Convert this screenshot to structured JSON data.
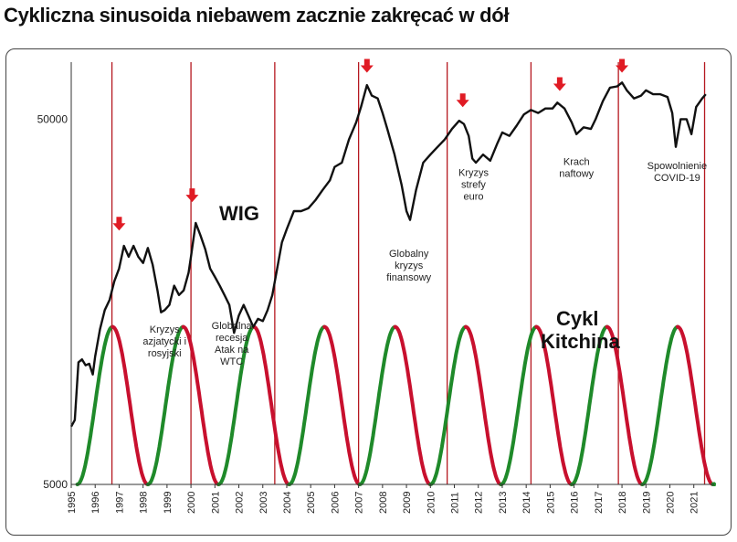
{
  "chart_data": {
    "type": "line",
    "title": "Cykliczna sinusoida niebawem zacznie zakręcać w dół",
    "wig_label": "WIG",
    "cycle_label": [
      "Cykl",
      "Kitchina"
    ],
    "y_scale": "log",
    "ylim": [
      5000,
      70000
    ],
    "yticks": [
      {
        "value": 5000,
        "label": "5000"
      },
      {
        "value": 50000,
        "label": "50000"
      }
    ],
    "xlim": [
      1995.0,
      2021.85
    ],
    "xticks": [
      "1995",
      "1996",
      "1997",
      "1998",
      "1999",
      "2000",
      "2001",
      "2002",
      "2003",
      "2004",
      "2005",
      "2006",
      "2007",
      "2008",
      "2009",
      "2010",
      "2011",
      "2012",
      "2013",
      "2014",
      "2015",
      "2016",
      "2017",
      "2018",
      "2019",
      "2020",
      "2021"
    ],
    "series": [
      {
        "points": [
          [
            1995.0,
            7200
          ],
          [
            1995.15,
            7500
          ],
          [
            1995.3,
            10800
          ],
          [
            1995.45,
            11000
          ],
          [
            1995.6,
            10600
          ],
          [
            1995.75,
            10700
          ],
          [
            1995.9,
            10000
          ],
          [
            1996.0,
            11200
          ],
          [
            1996.2,
            13300
          ],
          [
            1996.4,
            15000
          ],
          [
            1996.6,
            16000
          ],
          [
            1996.8,
            18000
          ],
          [
            1997.0,
            19500
          ],
          [
            1997.2,
            22500
          ],
          [
            1997.4,
            21000
          ],
          [
            1997.6,
            22500
          ],
          [
            1997.8,
            21000
          ],
          [
            1998.0,
            20200
          ],
          [
            1998.2,
            22200
          ],
          [
            1998.4,
            20000
          ],
          [
            1998.6,
            17000
          ],
          [
            1998.75,
            14800
          ],
          [
            1998.9,
            15000
          ],
          [
            1999.1,
            15500
          ],
          [
            1999.3,
            17500
          ],
          [
            1999.5,
            16500
          ],
          [
            1999.7,
            17000
          ],
          [
            1999.9,
            19000
          ],
          [
            2000.0,
            21000
          ],
          [
            2000.2,
            26000
          ],
          [
            2000.4,
            24000
          ],
          [
            2000.6,
            22000
          ],
          [
            2000.8,
            19500
          ],
          [
            2001.0,
            18500
          ],
          [
            2001.2,
            17500
          ],
          [
            2001.4,
            16500
          ],
          [
            2001.6,
            15500
          ],
          [
            2001.8,
            13000
          ],
          [
            2002.0,
            14500
          ],
          [
            2002.2,
            15500
          ],
          [
            2002.4,
            14500
          ],
          [
            2002.6,
            13500
          ],
          [
            2002.8,
            14200
          ],
          [
            2003.0,
            14000
          ],
          [
            2003.2,
            15000
          ],
          [
            2003.4,
            16500
          ],
          [
            2003.6,
            19500
          ],
          [
            2003.8,
            23000
          ],
          [
            2004.0,
            25000
          ],
          [
            2004.3,
            28000
          ],
          [
            2004.6,
            28000
          ],
          [
            2004.9,
            28500
          ],
          [
            2005.2,
            30000
          ],
          [
            2005.5,
            32000
          ],
          [
            2005.8,
            34000
          ],
          [
            2006.0,
            37000
          ],
          [
            2006.3,
            38000
          ],
          [
            2006.6,
            44000
          ],
          [
            2006.9,
            49000
          ],
          [
            2007.1,
            54000
          ],
          [
            2007.35,
            62000
          ],
          [
            2007.55,
            58000
          ],
          [
            2007.8,
            57000
          ],
          [
            2008.0,
            52000
          ],
          [
            2008.2,
            47000
          ],
          [
            2008.5,
            40000
          ],
          [
            2008.8,
            33000
          ],
          [
            2009.0,
            28000
          ],
          [
            2009.15,
            26500
          ],
          [
            2009.4,
            32000
          ],
          [
            2009.7,
            38000
          ],
          [
            2010.0,
            40000
          ],
          [
            2010.3,
            42000
          ],
          [
            2010.6,
            44000
          ],
          [
            2010.9,
            47000
          ],
          [
            2011.2,
            49500
          ],
          [
            2011.4,
            48500
          ],
          [
            2011.6,
            45000
          ],
          [
            2011.75,
            39000
          ],
          [
            2011.9,
            38000
          ],
          [
            2012.2,
            40000
          ],
          [
            2012.5,
            38500
          ],
          [
            2012.8,
            43000
          ],
          [
            2013.0,
            46000
          ],
          [
            2013.3,
            45000
          ],
          [
            2013.6,
            48000
          ],
          [
            2013.9,
            51500
          ],
          [
            2014.2,
            53000
          ],
          [
            2014.5,
            52000
          ],
          [
            2014.8,
            53500
          ],
          [
            2015.1,
            53500
          ],
          [
            2015.3,
            55500
          ],
          [
            2015.6,
            53500
          ],
          [
            2015.9,
            49000
          ],
          [
            2016.1,
            45500
          ],
          [
            2016.4,
            47500
          ],
          [
            2016.7,
            47000
          ],
          [
            2016.9,
            50000
          ],
          [
            2017.2,
            56000
          ],
          [
            2017.5,
            61000
          ],
          [
            2017.8,
            61500
          ],
          [
            2018.0,
            63000
          ],
          [
            2018.2,
            60000
          ],
          [
            2018.5,
            57000
          ],
          [
            2018.8,
            58000
          ],
          [
            2019.0,
            60000
          ],
          [
            2019.3,
            58500
          ],
          [
            2019.6,
            58500
          ],
          [
            2019.9,
            57500
          ],
          [
            2020.1,
            52000
          ],
          [
            2020.25,
            42000
          ],
          [
            2020.45,
            50000
          ],
          [
            2020.7,
            50000
          ],
          [
            2020.9,
            45500
          ],
          [
            2021.1,
            54000
          ],
          [
            2021.35,
            57000
          ],
          [
            2021.5,
            58500
          ]
        ]
      }
    ],
    "cycle": {
      "start_year": 1995.25,
      "period_years": 2.95,
      "amplitude_low": 5000,
      "amplitude_high": 13500,
      "end_year": 2021.85,
      "rising_color": "#1f8a2a",
      "falling_color": "#c8102e"
    },
    "cycle_peaks": [
      1996.7,
      1999.65,
      2002.6,
      2005.55,
      2008.5,
      2011.45,
      2014.4,
      2017.35,
      2020.3
    ],
    "vertical_lines": [
      1996.7,
      2000.0,
      2003.5,
      2007.0,
      2010.7,
      2014.2,
      2017.85,
      2021.45
    ],
    "red_arrows": [
      {
        "x": 1997.0,
        "y": 25500
      },
      {
        "x": 2000.05,
        "y": 30500
      },
      {
        "x": 2007.35,
        "y": 69000
      },
      {
        "x": 2011.35,
        "y": 55500
      },
      {
        "x": 2015.4,
        "y": 61500
      },
      {
        "x": 2018.0,
        "y": 69000
      }
    ],
    "annotations": [
      {
        "lines": [
          "Kryzys",
          "azjatycki i",
          "rosyjski"
        ],
        "x": 1998.9,
        "y": 13000
      },
      {
        "lines": [
          "Globalna",
          "recesja",
          "Atak na",
          "WTC"
        ],
        "x": 2001.7,
        "y": 13300
      },
      {
        "lines": [
          "Globalny",
          "kryzys",
          "finansowy"
        ],
        "x": 2009.1,
        "y": 21000
      },
      {
        "lines": [
          "Kryzys",
          "strefy",
          "euro"
        ],
        "x": 2011.8,
        "y": 35000
      },
      {
        "lines": [
          "Krach",
          "naftowy"
        ],
        "x": 2016.1,
        "y": 37500
      },
      {
        "lines": [
          "Spowolnienie",
          "COVID-19"
        ],
        "x": 2020.3,
        "y": 36500
      }
    ],
    "colors": {
      "wig_line": "#111111",
      "vertical_line": "#b5171f",
      "arrow": "#e01b24",
      "axis": "#333333"
    }
  }
}
